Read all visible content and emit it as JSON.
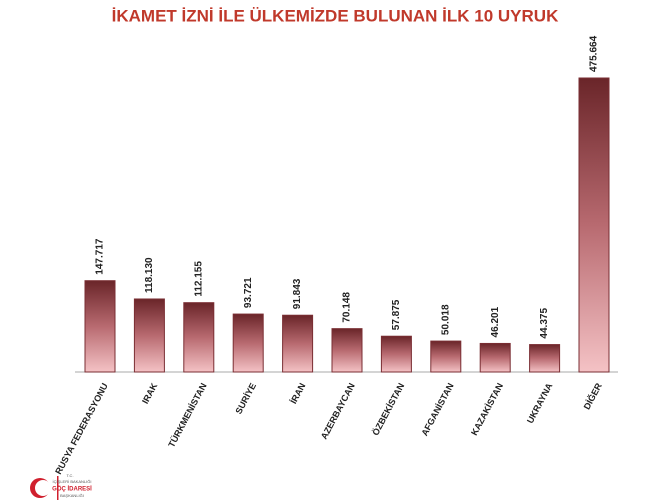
{
  "chart_data": {
    "type": "bar",
    "title": "İKAMET İZNİ İLE ÜLKEMİZDE BULUNAN İLK 10 UYRUK",
    "categories": [
      "RUSYA FEDERASYONU",
      "IRAK",
      "TÜRKMENİSTAN",
      "SURİYE",
      "İRAN",
      "AZERBAYCAN",
      "ÖZBEKİSTAN",
      "AFGANİSTAN",
      "KAZAKİSTAN",
      "UKRAYNA",
      "DİĞER"
    ],
    "values": [
      147717,
      118130,
      112155,
      93721,
      91843,
      70148,
      57875,
      50018,
      46201,
      44375,
      475664
    ],
    "value_labels": [
      "147.717",
      "118.130",
      "112.155",
      "93.721",
      "91.843",
      "70.148",
      "57.875",
      "50.018",
      "46.201",
      "44.375",
      "475.664"
    ],
    "color": "#7a2e33"
  },
  "logo": {
    "line1": "T.C.",
    "line2": "İÇİŞLERİ BAKANLIĞI",
    "line3": "GÖÇ İDARESİ",
    "line4": "BAŞKANLIĞI"
  }
}
